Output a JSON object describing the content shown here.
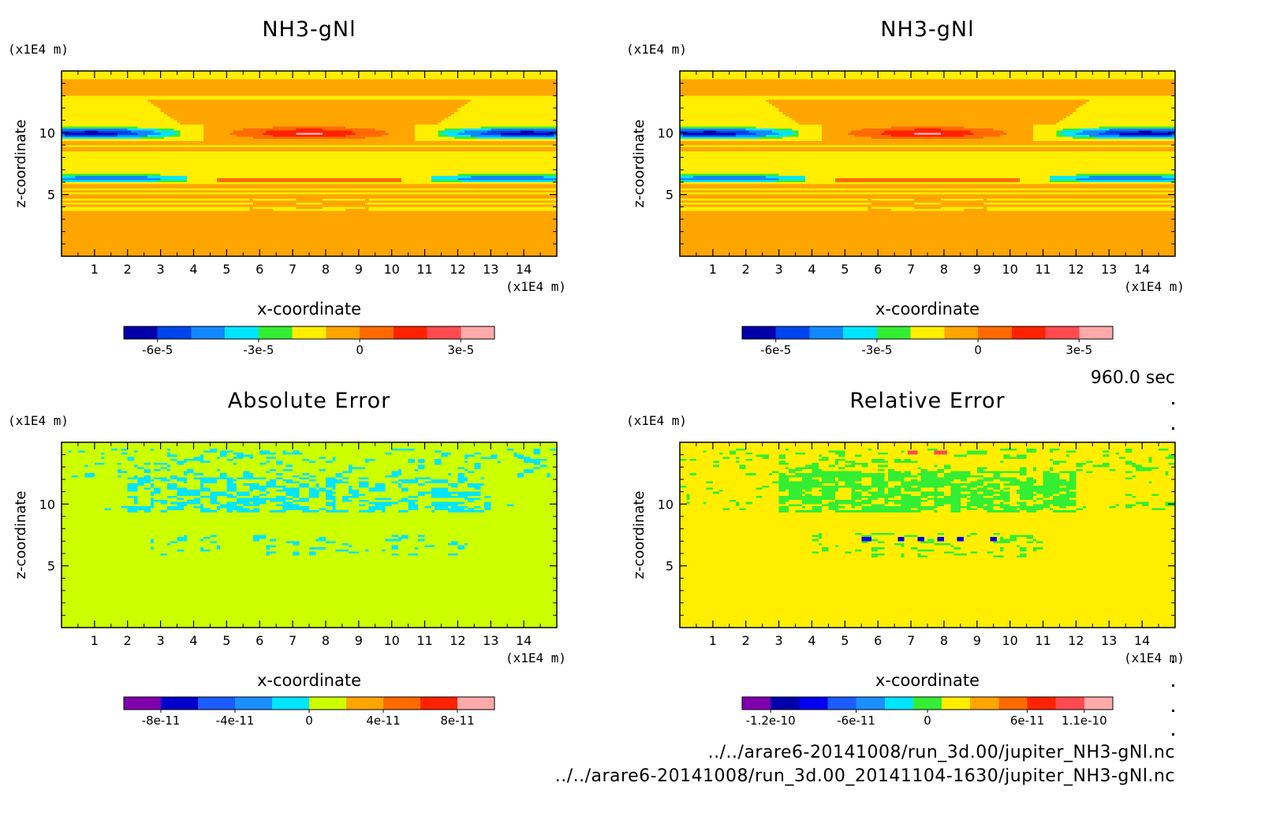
{
  "time_label": "960.0 sec",
  "files": [
    "../../arare6-20141008/run_3d.00/jupiter_NH3-gNl.nc",
    "../../arare6-20141008/run_3d.00_20141104-1630/jupiter_NH3-gNl.nc"
  ],
  "colors": {
    "nh3": [
      "#0000aa",
      "#0044ee",
      "#1188ff",
      "#00e5ff",
      "#33ee33",
      "#ffee00",
      "#ffa500",
      "#ff6a00",
      "#ff2200",
      "#ff4a50",
      "#ffaaaa"
    ],
    "abs": [
      "#8000b0",
      "#0000cc",
      "#1a5cff",
      "#1a90ff",
      "#00e5ff",
      "#ccff00",
      "#ffa500",
      "#ff6a00",
      "#ff2200",
      "#ffaaaa"
    ],
    "rel": [
      "#8000b0",
      "#0000aa",
      "#0000ee",
      "#1a5cff",
      "#1a90ff",
      "#00e5ff",
      "#33ee33",
      "#ffee00",
      "#ffa500",
      "#ff6a00",
      "#ff2200",
      "#ff4a50",
      "#ffaaaa"
    ]
  },
  "chart_data": [
    {
      "type": "heatmap",
      "title": "NH3-gNl",
      "xlabel": "x-coordinate",
      "ylabel": "z-coordinate",
      "x_unit": "(x1E4 m)",
      "z_unit": "(x1E4 m)",
      "xlim": [
        0,
        15
      ],
      "zlim": [
        0,
        15
      ],
      "x_ticks": [
        "1",
        "2",
        "3",
        "4",
        "5",
        "6",
        "7",
        "8",
        "9",
        "10",
        "11",
        "12",
        "13",
        "14"
      ],
      "z_ticks": [
        "5",
        "10"
      ],
      "colorbar_labels": [
        "-6e-5",
        "-3e-5",
        "0",
        "3e-5"
      ],
      "field": "nh3"
    },
    {
      "type": "heatmap",
      "title": "NH3-gNl",
      "xlabel": "x-coordinate",
      "ylabel": "z-coordinate",
      "x_unit": "(x1E4 m)",
      "z_unit": "(x1E4 m)",
      "xlim": [
        0,
        15
      ],
      "zlim": [
        0,
        15
      ],
      "x_ticks": [
        "1",
        "2",
        "3",
        "4",
        "5",
        "6",
        "7",
        "8",
        "9",
        "10",
        "11",
        "12",
        "13",
        "14"
      ],
      "z_ticks": [
        "5",
        "10"
      ],
      "colorbar_labels": [
        "-6e-5",
        "-3e-5",
        "0",
        "3e-5"
      ],
      "field": "nh3"
    },
    {
      "type": "heatmap",
      "title": "Absolute Error",
      "xlabel": "x-coordinate",
      "ylabel": "z-coordinate",
      "x_unit": "(x1E4 m)",
      "z_unit": "(x1E4 m)",
      "xlim": [
        0,
        15
      ],
      "zlim": [
        0,
        15
      ],
      "x_ticks": [
        "1",
        "2",
        "3",
        "4",
        "5",
        "6",
        "7",
        "8",
        "9",
        "10",
        "11",
        "12",
        "13",
        "14"
      ],
      "z_ticks": [
        "5",
        "10"
      ],
      "colorbar_labels": [
        "-8e-11",
        "-4e-11",
        "0",
        "4e-11",
        "8e-11"
      ],
      "field": "abs"
    },
    {
      "type": "heatmap",
      "title": "Relative Error",
      "xlabel": "x-coordinate",
      "ylabel": "z-coordinate",
      "x_unit": "(x1E4 m)",
      "z_unit": "(x1E4 m)",
      "xlim": [
        0,
        15
      ],
      "zlim": [
        0,
        15
      ],
      "x_ticks": [
        "1",
        "2",
        "3",
        "4",
        "5",
        "6",
        "7",
        "8",
        "9",
        "10",
        "11",
        "12",
        "13",
        "14"
      ],
      "z_ticks": [
        "5",
        "10"
      ],
      "colorbar_labels": [
        "-1.2e-10",
        "-6e-11",
        "0",
        "6e-11",
        "1.1e-10"
      ],
      "field": "rel"
    }
  ]
}
